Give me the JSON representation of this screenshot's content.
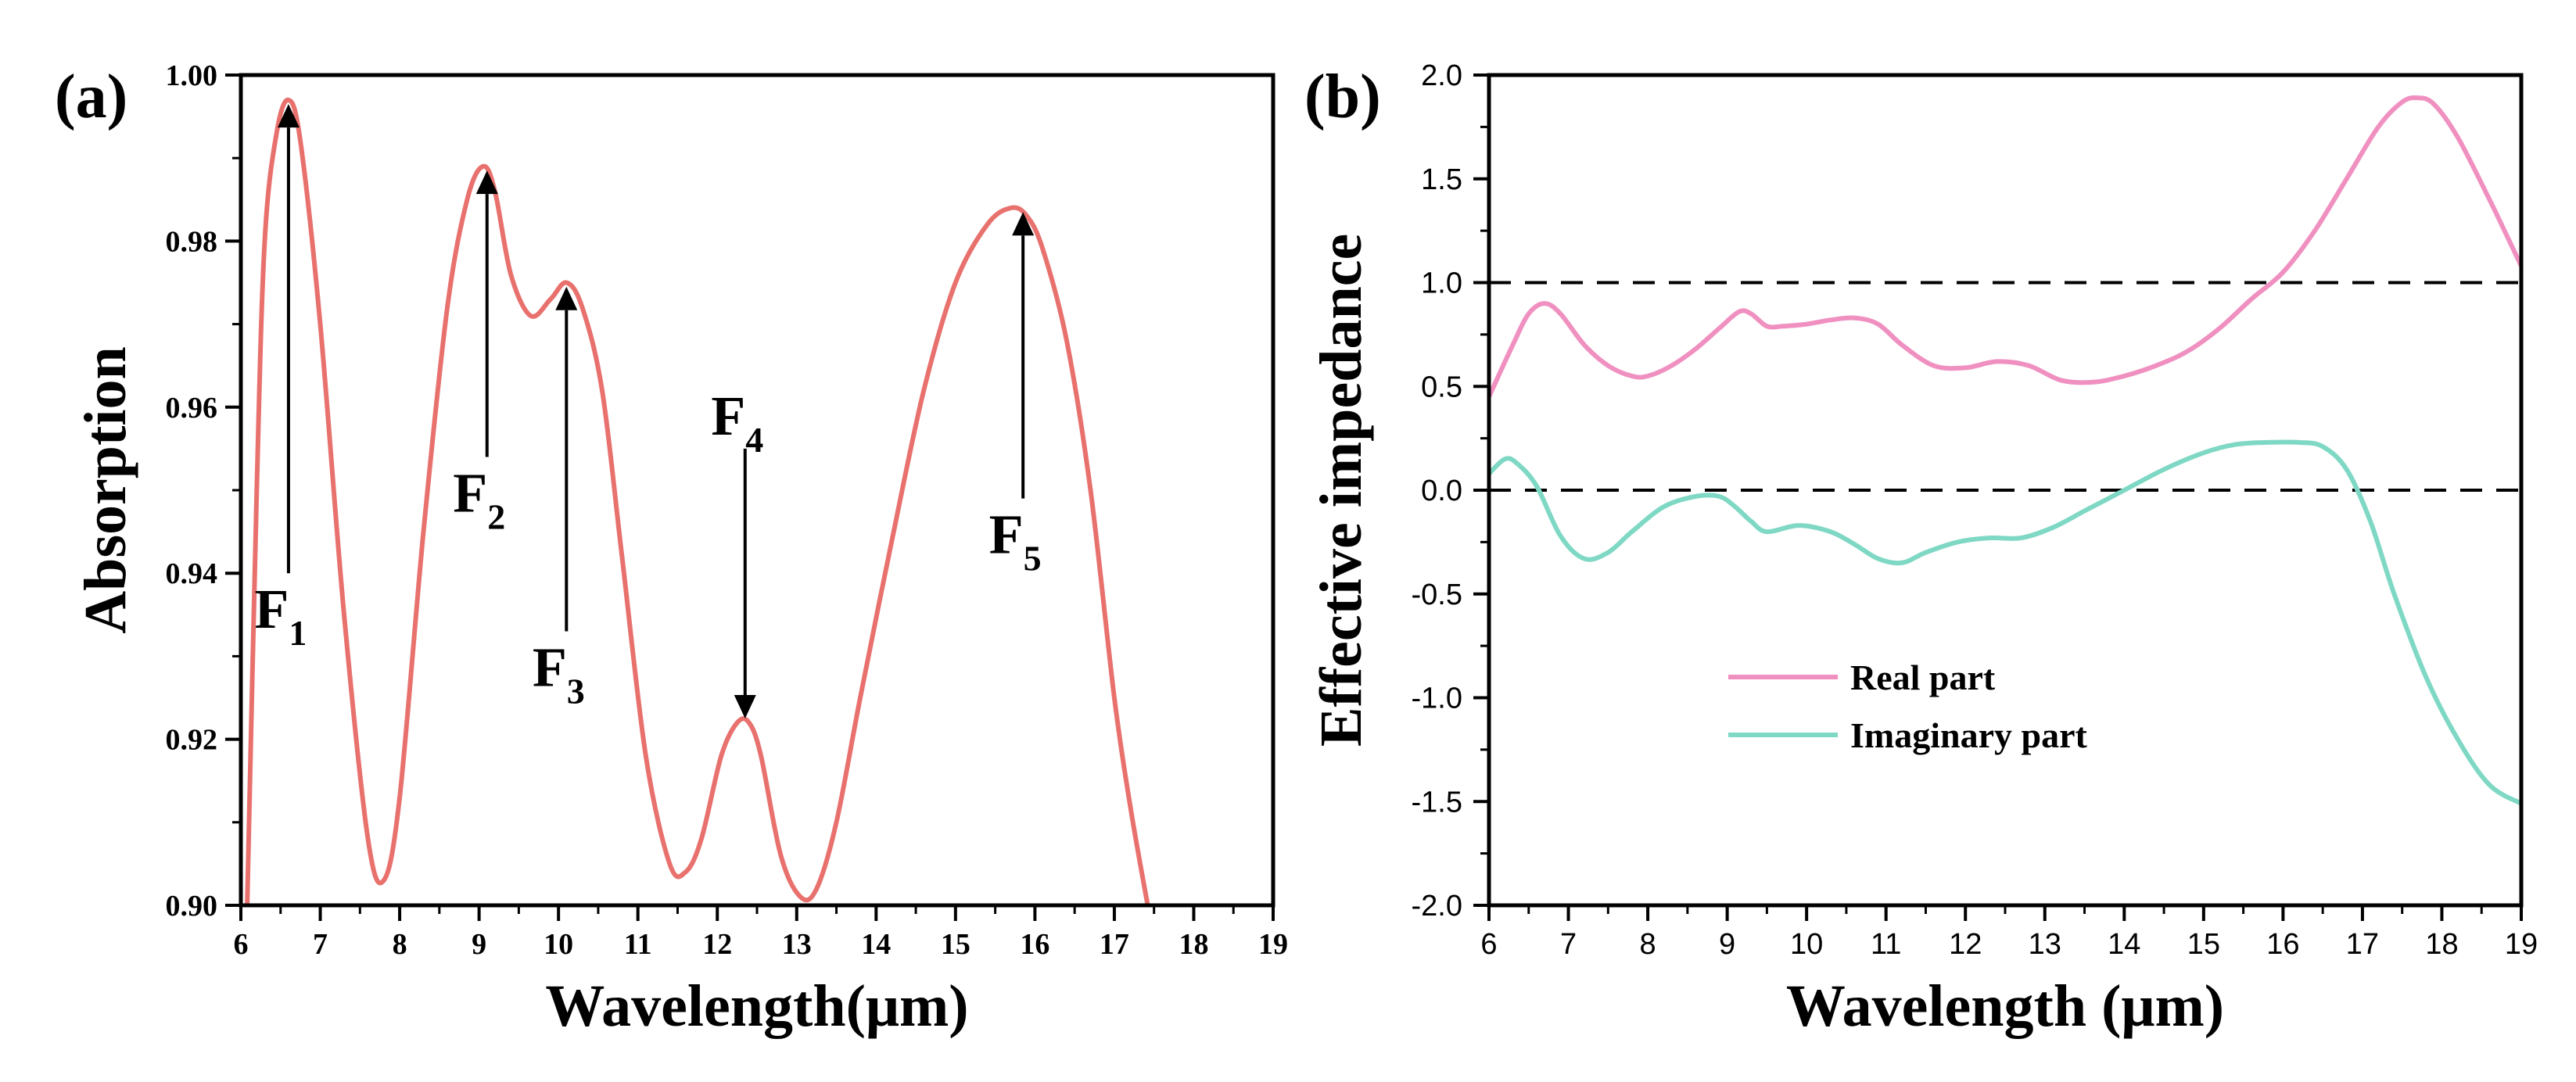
{
  "colors": {
    "absorption": "#E8716E",
    "real": "#F090C0",
    "imag": "#7ED8C4",
    "axis": "#000000"
  },
  "chart_data": [
    {
      "panel": "(a)",
      "type": "line",
      "xlabel": "Wavelength(μm)",
      "ylabel": "Absorption",
      "xlim": [
        6,
        19
      ],
      "ylim": [
        0.9,
        1.0
      ],
      "xticks": [
        "6",
        "7",
        "8",
        "9",
        "10",
        "11",
        "12",
        "13",
        "14",
        "15",
        "16",
        "17",
        "18",
        "19"
      ],
      "yticks": [
        "0.90",
        "0.92",
        "0.94",
        "0.96",
        "0.98",
        "1.00"
      ],
      "series": [
        {
          "name": "Absorption",
          "x": [
            6.08,
            6.2,
            6.3,
            6.45,
            6.6,
            6.75,
            7.0,
            7.3,
            7.6,
            7.8,
            8.0,
            8.3,
            8.6,
            8.85,
            9.05,
            9.2,
            9.4,
            9.65,
            9.9,
            10.1,
            10.3,
            10.55,
            10.8,
            11.1,
            11.4,
            11.6,
            11.8,
            12.05,
            12.25,
            12.4,
            12.55,
            12.8,
            13.05,
            13.25,
            13.5,
            13.8,
            14.2,
            14.6,
            15.0,
            15.4,
            15.7,
            15.9,
            16.1,
            16.4,
            16.7,
            17.0,
            17.2,
            17.42
          ],
          "y": [
            0.9,
            0.95,
            0.98,
            0.993,
            0.997,
            0.992,
            0.97,
            0.935,
            0.908,
            0.903,
            0.913,
            0.945,
            0.972,
            0.985,
            0.989,
            0.986,
            0.976,
            0.971,
            0.973,
            0.975,
            0.972,
            0.962,
            0.942,
            0.918,
            0.905,
            0.904,
            0.908,
            0.918,
            0.922,
            0.922,
            0.918,
            0.906,
            0.901,
            0.902,
            0.91,
            0.925,
            0.944,
            0.962,
            0.975,
            0.982,
            0.984,
            0.983,
            0.979,
            0.968,
            0.95,
            0.925,
            0.912,
            0.9
          ]
        }
      ],
      "annotations": [
        {
          "label": "F",
          "sub": "1",
          "x": 6.6,
          "y_tip": 0.9965,
          "y_tail": 0.94
        },
        {
          "label": "F",
          "sub": "2",
          "x": 9.1,
          "y_tip": 0.9885,
          "y_tail": 0.954
        },
        {
          "label": "F",
          "sub": "3",
          "x": 10.1,
          "y_tip": 0.9745,
          "y_tail": 0.933
        },
        {
          "label": "F",
          "sub": "4",
          "x": 12.35,
          "y_tip": 0.9225,
          "y_tail": 0.955
        },
        {
          "label": "F",
          "sub": "5",
          "x": 15.85,
          "y_tip": 0.9835,
          "y_tail": 0.949
        }
      ]
    },
    {
      "panel": "(b)",
      "type": "line",
      "xlabel": "Wavelength (μm)",
      "ylabel": "Effective impedance",
      "xlim": [
        6,
        19
      ],
      "ylim": [
        -2.0,
        2.0
      ],
      "xticks": [
        "6",
        "7",
        "8",
        "9",
        "10",
        "11",
        "12",
        "13",
        "14",
        "15",
        "16",
        "17",
        "18",
        "19"
      ],
      "yticks": [
        "2.0",
        "1.5",
        "1.0",
        "0.5",
        "0.0",
        "-0.5",
        "-1.0",
        "-1.5",
        "-2.0"
      ],
      "reference_lines": [
        1.0,
        0.0
      ],
      "legend": [
        "Real part",
        "Imaginary part"
      ],
      "legend_position": "lower-center",
      "series": [
        {
          "name": "Real part",
          "x": [
            6.0,
            6.3,
            6.5,
            6.7,
            6.9,
            7.2,
            7.5,
            7.8,
            8.0,
            8.3,
            8.6,
            8.9,
            9.15,
            9.3,
            9.5,
            9.7,
            10.0,
            10.3,
            10.6,
            10.9,
            11.2,
            11.6,
            12.0,
            12.4,
            12.8,
            13.2,
            13.6,
            14.0,
            14.4,
            14.8,
            15.2,
            15.6,
            16.0,
            16.4,
            16.8,
            17.2,
            17.5,
            17.7,
            17.9,
            18.2,
            18.6,
            19.0
          ],
          "y": [
            0.45,
            0.7,
            0.85,
            0.9,
            0.85,
            0.7,
            0.6,
            0.55,
            0.55,
            0.6,
            0.68,
            0.78,
            0.86,
            0.85,
            0.79,
            0.79,
            0.8,
            0.82,
            0.83,
            0.8,
            0.7,
            0.6,
            0.59,
            0.62,
            0.6,
            0.53,
            0.52,
            0.55,
            0.6,
            0.67,
            0.78,
            0.92,
            1.05,
            1.25,
            1.5,
            1.75,
            1.87,
            1.89,
            1.86,
            1.7,
            1.4,
            1.08
          ]
        },
        {
          "name": "Imaginary part",
          "x": [
            6.0,
            6.2,
            6.35,
            6.6,
            6.9,
            7.2,
            7.5,
            7.8,
            8.2,
            8.6,
            8.9,
            9.1,
            9.3,
            9.5,
            9.9,
            10.3,
            10.6,
            10.9,
            11.2,
            11.5,
            11.9,
            12.3,
            12.7,
            13.1,
            13.5,
            14.0,
            14.5,
            15.0,
            15.4,
            15.8,
            16.2,
            16.5,
            16.8,
            17.1,
            17.4,
            17.8,
            18.2,
            18.6,
            19.0
          ],
          "y": [
            0.08,
            0.15,
            0.13,
            0.02,
            -0.22,
            -0.33,
            -0.3,
            -0.2,
            -0.08,
            -0.03,
            -0.03,
            -0.08,
            -0.15,
            -0.2,
            -0.17,
            -0.2,
            -0.26,
            -0.33,
            -0.35,
            -0.3,
            -0.25,
            -0.23,
            -0.23,
            -0.18,
            -0.1,
            0.0,
            0.1,
            0.18,
            0.22,
            0.23,
            0.23,
            0.21,
            0.1,
            -0.15,
            -0.5,
            -0.9,
            -1.2,
            -1.42,
            -1.51
          ]
        }
      ]
    }
  ]
}
